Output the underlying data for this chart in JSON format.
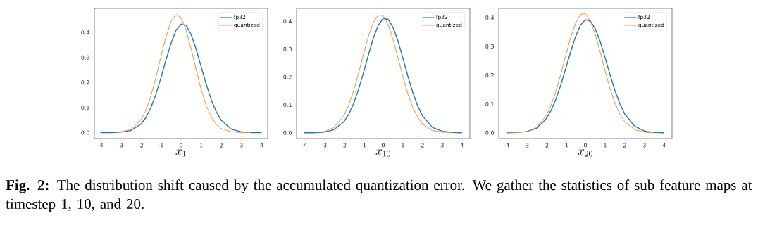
{
  "chart_data": [
    {
      "type": "line",
      "xlabel": "x_{1}",
      "legend": "top right",
      "xlim": [
        -4.3,
        4.3
      ],
      "ylim": [
        -0.024,
        0.496
      ],
      "xticks": [
        -4,
        -3,
        -2,
        -1,
        0,
        1,
        2,
        3,
        4
      ],
      "yticks": [
        {
          "value": 0,
          "label": "0.0"
        },
        {
          "value": 0.1,
          "label": "0.1"
        },
        {
          "value": 0.2,
          "label": "0.2"
        },
        {
          "value": 0.3,
          "label": "0.3"
        },
        {
          "value": 0.4,
          "label": "0.4"
        }
      ],
      "x": [
        -4,
        -3.5,
        -3,
        -2.5,
        -2,
        -1.75,
        -1.5,
        -1.25,
        -1,
        -0.75,
        -0.5,
        -0.25,
        0,
        0.25,
        0.5,
        0.75,
        1,
        1.25,
        1.5,
        1.75,
        2,
        2.5,
        3,
        3.5,
        4
      ],
      "series": [
        {
          "name": "fp32",
          "color": "#1f77b4",
          "values": [
            0.0,
            0.0,
            0.002,
            0.008,
            0.033,
            0.059,
            0.099,
            0.152,
            0.218,
            0.289,
            0.356,
            0.408,
            0.433,
            0.428,
            0.392,
            0.333,
            0.263,
            0.193,
            0.131,
            0.083,
            0.049,
            0.013,
            0.003,
            0.0,
            0.0
          ]
        },
        {
          "name": "quantized",
          "color": "#ff7f0e",
          "values": [
            null,
            null,
            0.002,
            0.012,
            0.049,
            0.088,
            0.145,
            0.218,
            0.302,
            0.382,
            0.443,
            0.472,
            0.459,
            0.41,
            0.335,
            0.251,
            0.172,
            0.108,
            0.062,
            0.033,
            0.016,
            0.003,
            0.0,
            0.0,
            null
          ]
        }
      ],
      "annotations": [
        "**Fig. 2:** The distribution shift caused by the accumulated quantization error. We gather the statistics of sub feature maps at timestep 1, 10, and 20."
      ]
    },
    {
      "type": "line",
      "xlabel": "x_{10}",
      "legend": "top right",
      "xlim": [
        -4.4,
        4.4
      ],
      "ylim": [
        -0.021,
        0.446
      ],
      "xticks": [
        -4,
        -3,
        -2,
        -1,
        0,
        1,
        2,
        3,
        4
      ],
      "yticks": [
        {
          "value": 0,
          "label": "0.0"
        },
        {
          "value": 0.1,
          "label": "0.1"
        },
        {
          "value": 0.2,
          "label": "0.2"
        },
        {
          "value": 0.3,
          "label": "0.3"
        },
        {
          "value": 0.4,
          "label": "0.4"
        }
      ],
      "x": [
        -4,
        -3.5,
        -3,
        -2.5,
        -2,
        -1.75,
        -1.5,
        -1.25,
        -1,
        -0.75,
        -0.5,
        -0.25,
        0,
        0.25,
        0.5,
        0.75,
        1,
        1.25,
        1.5,
        1.75,
        2,
        2.5,
        3,
        3.5,
        4
      ],
      "series": [
        {
          "name": "fp32",
          "color": "#1f77b4",
          "values": [
            0.0,
            0.0,
            0.002,
            0.011,
            0.039,
            0.066,
            0.105,
            0.156,
            0.216,
            0.28,
            0.34,
            0.386,
            0.41,
            0.407,
            0.378,
            0.329,
            0.267,
            0.203,
            0.145,
            0.096,
            0.06,
            0.019,
            0.005,
            0.001,
            0.0
          ]
        },
        {
          "name": "quantized",
          "color": "#ff7f0e",
          "values": [
            null,
            0.001,
            0.004,
            0.019,
            0.061,
            0.1,
            0.151,
            0.214,
            0.282,
            0.346,
            0.396,
            0.423,
            0.42,
            0.388,
            0.334,
            0.269,
            0.201,
            0.14,
            0.091,
            0.055,
            0.031,
            0.008,
            0.002,
            0.0,
            null
          ]
        }
      ]
    },
    {
      "type": "line",
      "xlabel": "x_{20}",
      "legend": "top right",
      "xlim": [
        -4.4,
        4.4
      ],
      "ylim": [
        -0.02,
        0.432
      ],
      "xticks": [
        -4,
        -3,
        -2,
        -1,
        0,
        1,
        2,
        3,
        4
      ],
      "yticks": [
        {
          "value": 0,
          "label": "0.0"
        },
        {
          "value": 0.1,
          "label": "0.1"
        },
        {
          "value": 0.2,
          "label": "0.2"
        },
        {
          "value": 0.3,
          "label": "0.3"
        },
        {
          "value": 0.4,
          "label": "0.4"
        }
      ],
      "x": [
        -4,
        -3.5,
        -3,
        -2.5,
        -2,
        -1.75,
        -1.5,
        -1.25,
        -1,
        -0.75,
        -0.5,
        -0.25,
        0,
        0.25,
        0.5,
        0.75,
        1,
        1.25,
        1.5,
        1.75,
        2,
        2.5,
        3,
        3.5,
        4
      ],
      "series": [
        {
          "name": "fp32",
          "color": "#1f77b4",
          "values": [
            0.0,
            0.001,
            0.004,
            0.015,
            0.048,
            0.077,
            0.116,
            0.166,
            0.223,
            0.281,
            0.334,
            0.374,
            0.393,
            0.388,
            0.362,
            0.317,
            0.261,
            0.202,
            0.147,
            0.101,
            0.065,
            0.023,
            0.006,
            0.001,
            0.0
          ]
        },
        {
          "name": "quantized",
          "color": "#ff7f0e",
          "values": [
            0.0,
            0.001,
            0.004,
            0.018,
            0.058,
            0.095,
            0.143,
            0.203,
            0.268,
            0.331,
            0.381,
            0.411,
            0.414,
            0.389,
            0.342,
            0.281,
            0.215,
            0.154,
            0.103,
            0.065,
            0.038,
            0.011,
            0.002,
            0.0,
            null
          ]
        }
      ]
    }
  ]
}
